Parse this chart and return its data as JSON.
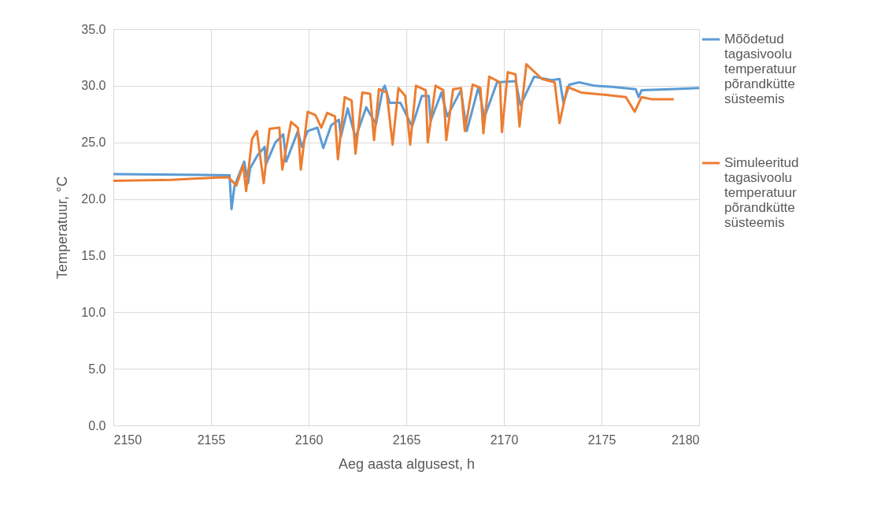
{
  "chart_data": {
    "type": "line",
    "xlabel": "Aeg aasta algusest, h",
    "ylabel": "Temperatuur, °C",
    "xlim": [
      2150,
      2180
    ],
    "xticks": [
      2150,
      2155,
      2160,
      2165,
      2170,
      2175,
      2180
    ],
    "ylim": [
      0,
      35
    ],
    "yticks": [
      {
        "value": 0,
        "label": "0.0"
      },
      {
        "value": 5,
        "label": "5.0"
      },
      {
        "value": 10,
        "label": "10.0"
      },
      {
        "value": 15,
        "label": "15.0"
      },
      {
        "value": 20,
        "label": "20.0"
      },
      {
        "value": 25,
        "label": "25.0"
      },
      {
        "value": 30,
        "label": "30.0"
      },
      {
        "value": 35,
        "label": "35.0"
      }
    ],
    "grid": true,
    "legend": "right",
    "series": [
      {
        "name": "Mõõdetud tagasivoolu temperatuur põrandkütte süsteemis",
        "color": "#5b9bd5",
        "x": [
          2150,
          2155.95,
          2156.05,
          2156.2,
          2156.4,
          2156.7,
          2156.9,
          2157.0,
          2157.4,
          2157.75,
          2157.8,
          2158.3,
          2158.7,
          2158.85,
          2159.45,
          2159.65,
          2159.95,
          2160.45,
          2160.75,
          2161.15,
          2161.55,
          2161.65,
          2162.0,
          2162.4,
          2162.95,
          2163.45,
          2163.8,
          2163.9,
          2164.15,
          2164.7,
          2165.3,
          2165.8,
          2166.15,
          2166.25,
          2166.8,
          2167.1,
          2167.8,
          2168.1,
          2168.7,
          2169.0,
          2169.65,
          2170.6,
          2170.85,
          2171.55,
          2172.45,
          2172.85,
          2173.05,
          2173.35,
          2173.85,
          2174.65,
          2175.55,
          2176.75,
          2176.9,
          2177.05,
          2178.5,
          2180.0
        ],
        "values": [
          22.2,
          22.1,
          19.1,
          21.1,
          22.0,
          23.3,
          21.4,
          22.7,
          23.9,
          24.6,
          23.0,
          25.0,
          25.7,
          23.3,
          26.0,
          24.6,
          26.0,
          26.3,
          24.5,
          26.5,
          27.0,
          25.5,
          28.0,
          25.4,
          28.1,
          26.6,
          29.7,
          30.0,
          28.5,
          28.5,
          26.4,
          29.1,
          29.1,
          26.9,
          29.4,
          27.3,
          29.6,
          26.0,
          29.9,
          27.2,
          30.3,
          30.4,
          28.3,
          30.8,
          30.5,
          30.6,
          28.5,
          30.1,
          30.3,
          30.0,
          29.9,
          29.7,
          29.0,
          29.6,
          29.7,
          29.8
        ]
      },
      {
        "name": "Simuleeritud tagasivoolu temperatuur põrandkütte süsteemis",
        "color": "#ed7d31",
        "x": [
          2150.0,
          2153.0,
          2155.4,
          2155.9,
          2156.3,
          2156.65,
          2156.8,
          2157.1,
          2157.35,
          2157.7,
          2158.0,
          2158.5,
          2158.65,
          2159.1,
          2159.45,
          2159.6,
          2159.95,
          2160.35,
          2160.65,
          2160.95,
          2161.35,
          2161.5,
          2161.85,
          2162.2,
          2162.4,
          2162.75,
          2163.15,
          2163.35,
          2163.6,
          2164.0,
          2164.3,
          2164.6,
          2164.95,
          2165.2,
          2165.5,
          2166.0,
          2166.1,
          2166.5,
          2166.9,
          2167.05,
          2167.4,
          2167.8,
          2168.0,
          2168.4,
          2168.8,
          2168.95,
          2169.25,
          2169.8,
          2169.9,
          2170.2,
          2170.6,
          2170.8,
          2171.15,
          2171.95,
          2172.6,
          2172.85,
          2173.25,
          2173.95,
          2175.15,
          2176.25,
          2176.7,
          2177.05,
          2177.6,
          2178.7
        ],
        "values": [
          21.6,
          21.7,
          21.9,
          21.9,
          21.2,
          23.0,
          20.7,
          25.3,
          26.0,
          21.4,
          26.2,
          26.3,
          22.6,
          26.8,
          26.3,
          22.6,
          27.7,
          27.4,
          26.3,
          27.6,
          27.3,
          23.5,
          29.0,
          28.7,
          24.0,
          29.4,
          29.3,
          25.2,
          29.7,
          29.4,
          24.8,
          29.8,
          29.1,
          24.8,
          30.0,
          29.6,
          25.0,
          30.0,
          29.6,
          25.2,
          29.7,
          29.8,
          26.0,
          30.1,
          29.8,
          25.8,
          30.8,
          30.3,
          25.9,
          31.2,
          31.0,
          26.4,
          31.9,
          30.6,
          30.3,
          26.7,
          29.9,
          29.4,
          29.2,
          29.0,
          27.7,
          29.0,
          28.8,
          28.8
        ]
      }
    ]
  }
}
